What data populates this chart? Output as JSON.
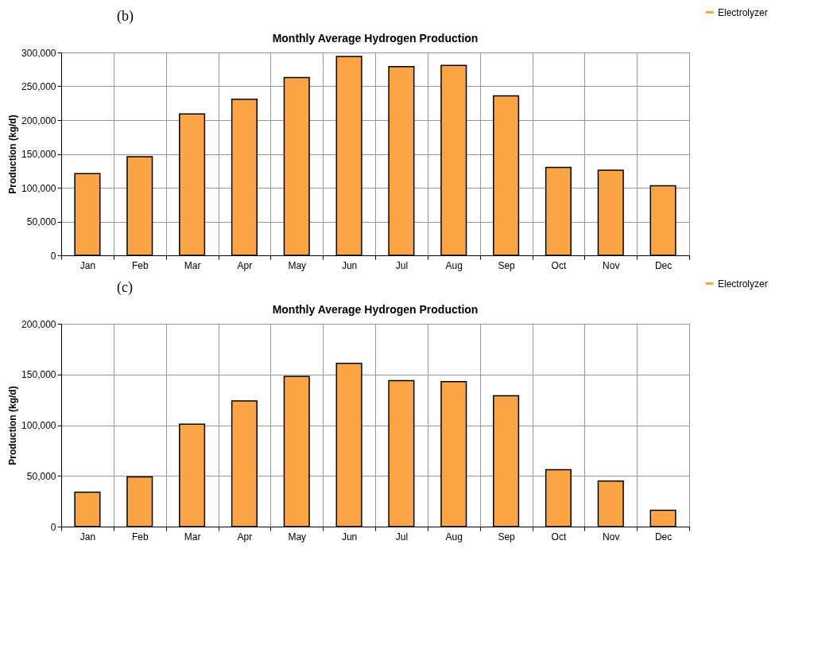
{
  "chart_data": [
    {
      "type": "bar",
      "title": "Monthly Average Hydrogen Production",
      "ylabel": "Production (kg/d)",
      "annotations": [
        "(b)"
      ],
      "categories": [
        "Jan",
        "Feb",
        "Mar",
        "Apr",
        "May",
        "Jun",
        "Jul",
        "Aug",
        "Sep",
        "Oct",
        "Nov",
        "Dec"
      ],
      "series": [
        {
          "name": "Electrolyzer",
          "color": "#fba446",
          "values": [
            121000,
            146000,
            209000,
            231000,
            263000,
            294000,
            279000,
            281000,
            236000,
            130000,
            126000,
            103000
          ]
        }
      ],
      "ylim": [
        0,
        300000
      ],
      "yticks": [
        0,
        {
          "value": 50000,
          "label": "50,000"
        },
        {
          "value": 100000,
          "label": "100,000"
        },
        {
          "value": 150000,
          "label": "150,000"
        },
        {
          "value": 200000,
          "label": "200,000"
        },
        {
          "value": 250000,
          "label": "250,000"
        },
        {
          "value": 300000,
          "label": "300,000"
        }
      ],
      "grid": true,
      "legend": "top right"
    },
    {
      "type": "bar",
      "title": "Monthly Average Hydrogen Production",
      "ylabel": "Production (kg/d)",
      "annotations": [
        "(c)"
      ],
      "categories": [
        "Jan",
        "Feb",
        "Mar",
        "Apr",
        "May",
        "Jun",
        "Jul",
        "Aug",
        "Sep",
        "Oct",
        "Nov",
        "Dec"
      ],
      "series": [
        {
          "name": "Electrolyzer",
          "color": "#fba446",
          "values": [
            34000,
            49000,
            101000,
            124000,
            148000,
            161000,
            144000,
            143000,
            129000,
            56000,
            45000,
            16000
          ]
        }
      ],
      "ylim": [
        0,
        200000
      ],
      "yticks": [
        0,
        {
          "value": 50000,
          "label": "50,000"
        },
        {
          "value": 100000,
          "label": "100,000"
        },
        {
          "value": 150000,
          "label": "150,000"
        },
        {
          "value": 200000,
          "label": "200,000"
        }
      ],
      "grid": true,
      "legend": "top right"
    }
  ]
}
